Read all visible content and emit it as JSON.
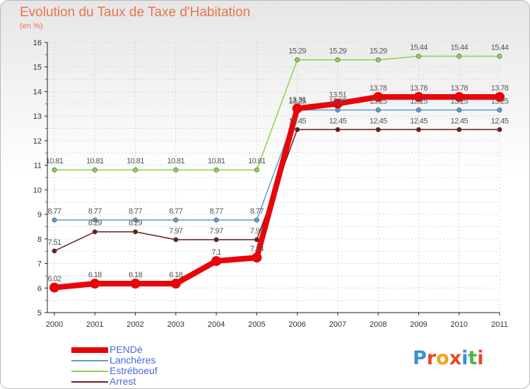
{
  "title": "Evolution du Taux de Taxe d'Habitation",
  "subtitle": "(en %)",
  "logo": {
    "text": "Proxiti",
    "letters": [
      "P",
      "r",
      "o",
      "x",
      "i",
      "t",
      "i"
    ],
    "colors": [
      "#3b8fd8",
      "#e8492a",
      "#f2a31b",
      "#e8492a",
      "#3b8fd8",
      "#49b948",
      "#e8492a"
    ]
  },
  "chart_data": {
    "type": "line",
    "title": "Evolution du Taux de Taxe d'Habitation",
    "ylabel": "(en %)",
    "xlabel": "",
    "categories": [
      "2000",
      "2001",
      "2002",
      "2003",
      "2004",
      "2005",
      "2006",
      "2007",
      "2008",
      "2009",
      "2010",
      "2011"
    ],
    "ylim": [
      5,
      16
    ],
    "yticks": [
      "5",
      "6",
      "7",
      "8",
      "9",
      "10",
      "11",
      "12",
      "13",
      "14",
      "15",
      "16"
    ],
    "grid": true,
    "legend_position": "bottom-left",
    "series": [
      {
        "name": "Arrest",
        "color": "#6b1d1d",
        "values": [
          7.51,
          8.29,
          8.29,
          7.97,
          7.97,
          7.97,
          12.45,
          12.45,
          12.45,
          12.45,
          12.45,
          12.45
        ],
        "labels": [
          "7.51",
          "8.29",
          "8.29",
          "7.97",
          "7.97",
          "7.97",
          "12.45",
          "12.45",
          "12.45",
          "12.45",
          "12.45",
          "12.45"
        ]
      },
      {
        "name": "Lanchères",
        "color": "#5b9bd5",
        "values": [
          8.77,
          8.77,
          8.77,
          8.77,
          8.77,
          8.77,
          13.25,
          13.25,
          13.25,
          13.25,
          13.25,
          13.25
        ],
        "labels": [
          "8.77",
          "8.77",
          "8.77",
          "8.77",
          "8.77",
          "8.77",
          "13.25",
          "13.25",
          "13.25",
          "13.25",
          "13.25",
          "13.25"
        ]
      },
      {
        "name": "Estréboeuf",
        "color": "#8fd14f",
        "values": [
          10.81,
          10.81,
          10.81,
          10.81,
          10.81,
          10.81,
          15.29,
          15.29,
          15.29,
          15.44,
          15.44,
          15.44
        ],
        "labels": [
          "10.81",
          "10.81",
          "10.81",
          "10.81",
          "10.81",
          "10.81",
          "15.29",
          "15.29",
          "15.29",
          "15.44",
          "15.44",
          "15.44"
        ]
      },
      {
        "name": "PENDé",
        "color": "#e8050a",
        "values": [
          6.02,
          6.18,
          6.18,
          6.18,
          7.1,
          7.24,
          13.31,
          13.51,
          13.78,
          13.78,
          13.78,
          13.78
        ],
        "labels": [
          "6.02",
          "6.18",
          "6.18",
          "6.18",
          "7.1",
          "7.24",
          "13.31",
          "13.51",
          "13.78",
          "13.78",
          "13.78",
          "13.78"
        ]
      }
    ],
    "legend_order": [
      "PENDé",
      "Lanchères",
      "Estréboeuf",
      "Arrest"
    ]
  }
}
